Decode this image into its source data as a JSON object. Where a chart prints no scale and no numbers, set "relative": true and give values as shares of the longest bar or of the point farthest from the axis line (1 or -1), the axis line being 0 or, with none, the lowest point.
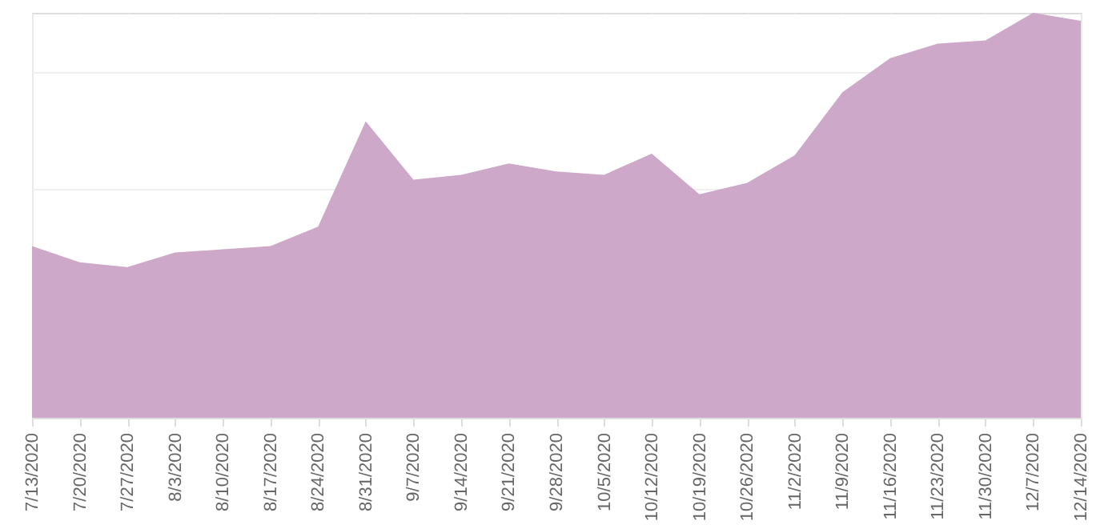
{
  "chart_data": {
    "type": "area",
    "relative": true,
    "grid": true,
    "categories": [
      "7/13/2020",
      "7/20/2020",
      "7/27/2020",
      "8/3/2020",
      "8/10/2020",
      "8/17/2020",
      "8/24/2020",
      "8/31/2020",
      "9/7/2020",
      "9/14/2020",
      "9/21/2020",
      "9/28/2020",
      "10/5/2020",
      "10/12/2020",
      "10/19/2020",
      "10/26/2020",
      "11/2/2020",
      "11/9/2020",
      "11/16/2020",
      "11/23/2020",
      "11/30/2020",
      "12/7/2020",
      "12/14/2020"
    ],
    "series": [
      {
        "color": "#cda8c8",
        "values": [
          0.424,
          0.384,
          0.372,
          0.408,
          0.416,
          0.424,
          0.472,
          0.732,
          0.588,
          0.6,
          0.628,
          0.608,
          0.6,
          0.652,
          0.552,
          0.58,
          0.648,
          0.804,
          0.888,
          0.924,
          0.932,
          1,
          0.98
        ]
      }
    ]
  }
}
